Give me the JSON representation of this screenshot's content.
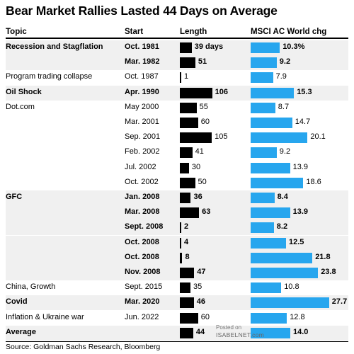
{
  "title": "Bear Market Rallies Lasted 44 Days on Average",
  "source": "Source: Goldman Sachs Research, Bloomberg",
  "watermark": {
    "line1": "Posted on",
    "line2": "ISABELNET.com"
  },
  "colors": {
    "length_bar": "#000000",
    "change_bar": "#27a6ee",
    "shade": "#f0f0f0"
  },
  "chart_data": {
    "type": "table",
    "title": "Bear Market Rallies Lasted 44 Days on Average",
    "columns": [
      "Topic",
      "Start",
      "Length",
      "MSCI AC World chg"
    ],
    "rows": [
      {
        "topic": "Recession and Stagflation",
        "start": "Oct. 1981",
        "length": 39,
        "length_label": "39 days",
        "chg": 10.3,
        "chg_label": "10.3%",
        "bold": true,
        "shaded": true
      },
      {
        "topic": "",
        "start": "Mar. 1982",
        "length": 51,
        "length_label": "51",
        "chg": 9.2,
        "chg_label": "9.2",
        "bold": true,
        "shaded": true
      },
      {
        "topic": "Program trading collapse",
        "start": "Oct. 1987",
        "length": 1,
        "length_label": "1",
        "chg": 7.9,
        "chg_label": "7.9",
        "bold": false,
        "shaded": false
      },
      {
        "topic": "Oil Shock",
        "start": "Apr. 1990",
        "length": 106,
        "length_label": "106",
        "chg": 15.3,
        "chg_label": "15.3",
        "bold": true,
        "shaded": true
      },
      {
        "topic": "Dot.com",
        "start": "May 2000",
        "length": 55,
        "length_label": "55",
        "chg": 8.7,
        "chg_label": "8.7",
        "bold": false,
        "shaded": false
      },
      {
        "topic": "",
        "start": "Mar. 2001",
        "length": 60,
        "length_label": "60",
        "chg": 14.7,
        "chg_label": "14.7",
        "bold": false,
        "shaded": false
      },
      {
        "topic": "",
        "start": "Sep. 2001",
        "length": 105,
        "length_label": "105",
        "chg": 20.1,
        "chg_label": "20.1",
        "bold": false,
        "shaded": false
      },
      {
        "topic": "",
        "start": "Feb. 2002",
        "length": 41,
        "length_label": "41",
        "chg": 9.2,
        "chg_label": "9.2",
        "bold": false,
        "shaded": false
      },
      {
        "topic": "",
        "start": "Jul. 2002",
        "length": 30,
        "length_label": "30",
        "chg": 13.9,
        "chg_label": "13.9",
        "bold": false,
        "shaded": false
      },
      {
        "topic": "",
        "start": "Oct. 2002",
        "length": 50,
        "length_label": "50",
        "chg": 18.6,
        "chg_label": "18.6",
        "bold": false,
        "shaded": false
      },
      {
        "topic": "GFC",
        "start": "Jan. 2008",
        "length": 36,
        "length_label": "36",
        "chg": 8.4,
        "chg_label": "8.4",
        "bold": true,
        "shaded": true
      },
      {
        "topic": "",
        "start": "Mar. 2008",
        "length": 63,
        "length_label": "63",
        "chg": 13.9,
        "chg_label": "13.9",
        "bold": true,
        "shaded": true
      },
      {
        "topic": "",
        "start": "Sept. 2008",
        "length": 2,
        "length_label": "2",
        "chg": 8.2,
        "chg_label": "8.2",
        "bold": true,
        "shaded": true
      },
      {
        "topic": "",
        "start": "Oct. 2008",
        "length": 4,
        "length_label": "4",
        "chg": 12.5,
        "chg_label": "12.5",
        "bold": true,
        "shaded": true
      },
      {
        "topic": "",
        "start": "Oct. 2008",
        "length": 8,
        "length_label": "8",
        "chg": 21.8,
        "chg_label": "21.8",
        "bold": true,
        "shaded": true
      },
      {
        "topic": "",
        "start": "Nov. 2008",
        "length": 47,
        "length_label": "47",
        "chg": 23.8,
        "chg_label": "23.8",
        "bold": true,
        "shaded": true
      },
      {
        "topic": "China, Growth",
        "start": "Sept. 2015",
        "length": 35,
        "length_label": "35",
        "chg": 10.8,
        "chg_label": "10.8",
        "bold": false,
        "shaded": false
      },
      {
        "topic": "Covid",
        "start": "Mar. 2020",
        "length": 46,
        "length_label": "46",
        "chg": 27.7,
        "chg_label": "27.7",
        "bold": true,
        "shaded": true
      },
      {
        "topic": "Inflation & Ukraine war",
        "start": "Jun. 2022",
        "length": 60,
        "length_label": "60",
        "chg": 12.8,
        "chg_label": "12.8",
        "bold": false,
        "shaded": false
      },
      {
        "topic": "Average",
        "start": "",
        "length": 44,
        "length_label": "44",
        "chg": 14.0,
        "chg_label": "14.0",
        "bold": true,
        "shaded": true
      }
    ]
  }
}
